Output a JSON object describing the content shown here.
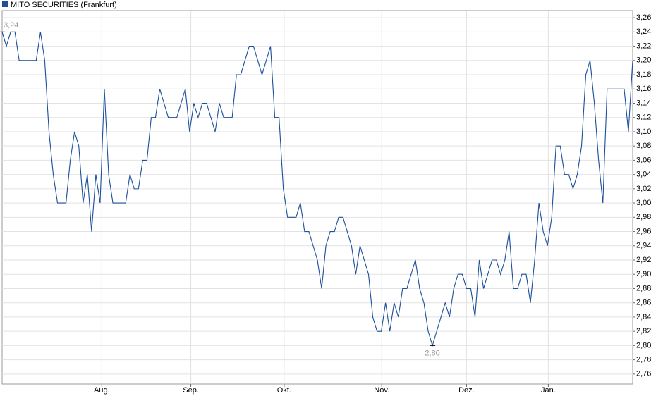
{
  "chart_data": {
    "type": "line",
    "series": [
      {
        "name": "MITO SECURITIES (Frankfurt)",
        "color": "#1c4f9c",
        "values": [
          3.24,
          3.22,
          3.24,
          3.24,
          3.2,
          3.2,
          3.2,
          3.2,
          3.2,
          3.24,
          3.2,
          3.1,
          3.04,
          3.0,
          3.0,
          3.0,
          3.06,
          3.1,
          3.08,
          3.0,
          3.04,
          2.96,
          3.04,
          3.0,
          3.16,
          3.04,
          3.0,
          3.0,
          3.0,
          3.0,
          3.04,
          3.02,
          3.02,
          3.06,
          3.06,
          3.12,
          3.12,
          3.16,
          3.14,
          3.12,
          3.12,
          3.12,
          3.14,
          3.16,
          3.1,
          3.14,
          3.12,
          3.14,
          3.14,
          3.12,
          3.1,
          3.14,
          3.12,
          3.12,
          3.12,
          3.18,
          3.18,
          3.2,
          3.22,
          3.22,
          3.2,
          3.18,
          3.2,
          3.22,
          3.12,
          3.12,
          3.02,
          2.98,
          2.98,
          2.98,
          3.0,
          2.96,
          2.96,
          2.94,
          2.92,
          2.88,
          2.94,
          2.96,
          2.96,
          2.98,
          2.98,
          2.96,
          2.94,
          2.9,
          2.94,
          2.92,
          2.9,
          2.84,
          2.82,
          2.82,
          2.86,
          2.82,
          2.86,
          2.84,
          2.88,
          2.88,
          2.9,
          2.92,
          2.88,
          2.86,
          2.82,
          2.8,
          2.82,
          2.84,
          2.86,
          2.84,
          2.88,
          2.9,
          2.9,
          2.88,
          2.88,
          2.84,
          2.92,
          2.88,
          2.9,
          2.92,
          2.92,
          2.9,
          2.92,
          2.96,
          2.88,
          2.88,
          2.9,
          2.9,
          2.86,
          2.92,
          3.0,
          2.96,
          2.94,
          2.98,
          3.08,
          3.08,
          3.04,
          3.04,
          3.02,
          3.04,
          3.08,
          3.18,
          3.2,
          3.14,
          3.06,
          3.0,
          3.16,
          3.16,
          3.16,
          3.16,
          3.16,
          3.1,
          3.2
        ]
      }
    ],
    "xlim": [
      0,
      148
    ],
    "xticks": [
      {
        "value": 23.4,
        "label": "Aug."
      },
      {
        "value": 44.3,
        "label": "Sep."
      },
      {
        "value": 66.2,
        "label": "Okt."
      },
      {
        "value": 89.1,
        "label": "Nov."
      },
      {
        "value": 109,
        "label": "Dez."
      },
      {
        "value": 128.2,
        "label": "Jan."
      }
    ],
    "ylim": [
      2.746,
      3.27
    ],
    "yticks": [
      {
        "value": 2.76,
        "label": "2,76"
      },
      {
        "value": 2.78,
        "label": "2,78"
      },
      {
        "value": 2.8,
        "label": "2,80"
      },
      {
        "value": 2.82,
        "label": "2,82"
      },
      {
        "value": 2.84,
        "label": "2,84"
      },
      {
        "value": 2.86,
        "label": "2,86"
      },
      {
        "value": 2.88,
        "label": "2,88"
      },
      {
        "value": 2.9,
        "label": "2,90"
      },
      {
        "value": 2.92,
        "label": "2,92"
      },
      {
        "value": 2.94,
        "label": "2,94"
      },
      {
        "value": 2.96,
        "label": "2,96"
      },
      {
        "value": 2.98,
        "label": "2,98"
      },
      {
        "value": 3.0,
        "label": "3,00"
      },
      {
        "value": 3.02,
        "label": "3,02"
      },
      {
        "value": 3.04,
        "label": "3,04"
      },
      {
        "value": 3.06,
        "label": "3,06"
      },
      {
        "value": 3.08,
        "label": "3,08"
      },
      {
        "value": 3.1,
        "label": "3,10"
      },
      {
        "value": 3.12,
        "label": "3,12"
      },
      {
        "value": 3.14,
        "label": "3,14"
      },
      {
        "value": 3.16,
        "label": "3,16"
      },
      {
        "value": 3.18,
        "label": "3,18"
      },
      {
        "value": 3.2,
        "label": "3,20"
      },
      {
        "value": 3.22,
        "label": "3,22"
      },
      {
        "value": 3.24,
        "label": "3,24"
      },
      {
        "value": 3.26,
        "label": "3,26"
      }
    ],
    "annotations": [
      {
        "text": "3,24",
        "x": 0,
        "y": 3.24
      },
      {
        "text": "2,80",
        "x": 101,
        "y": 2.8
      }
    ],
    "grid": true,
    "legend": "top-left"
  }
}
